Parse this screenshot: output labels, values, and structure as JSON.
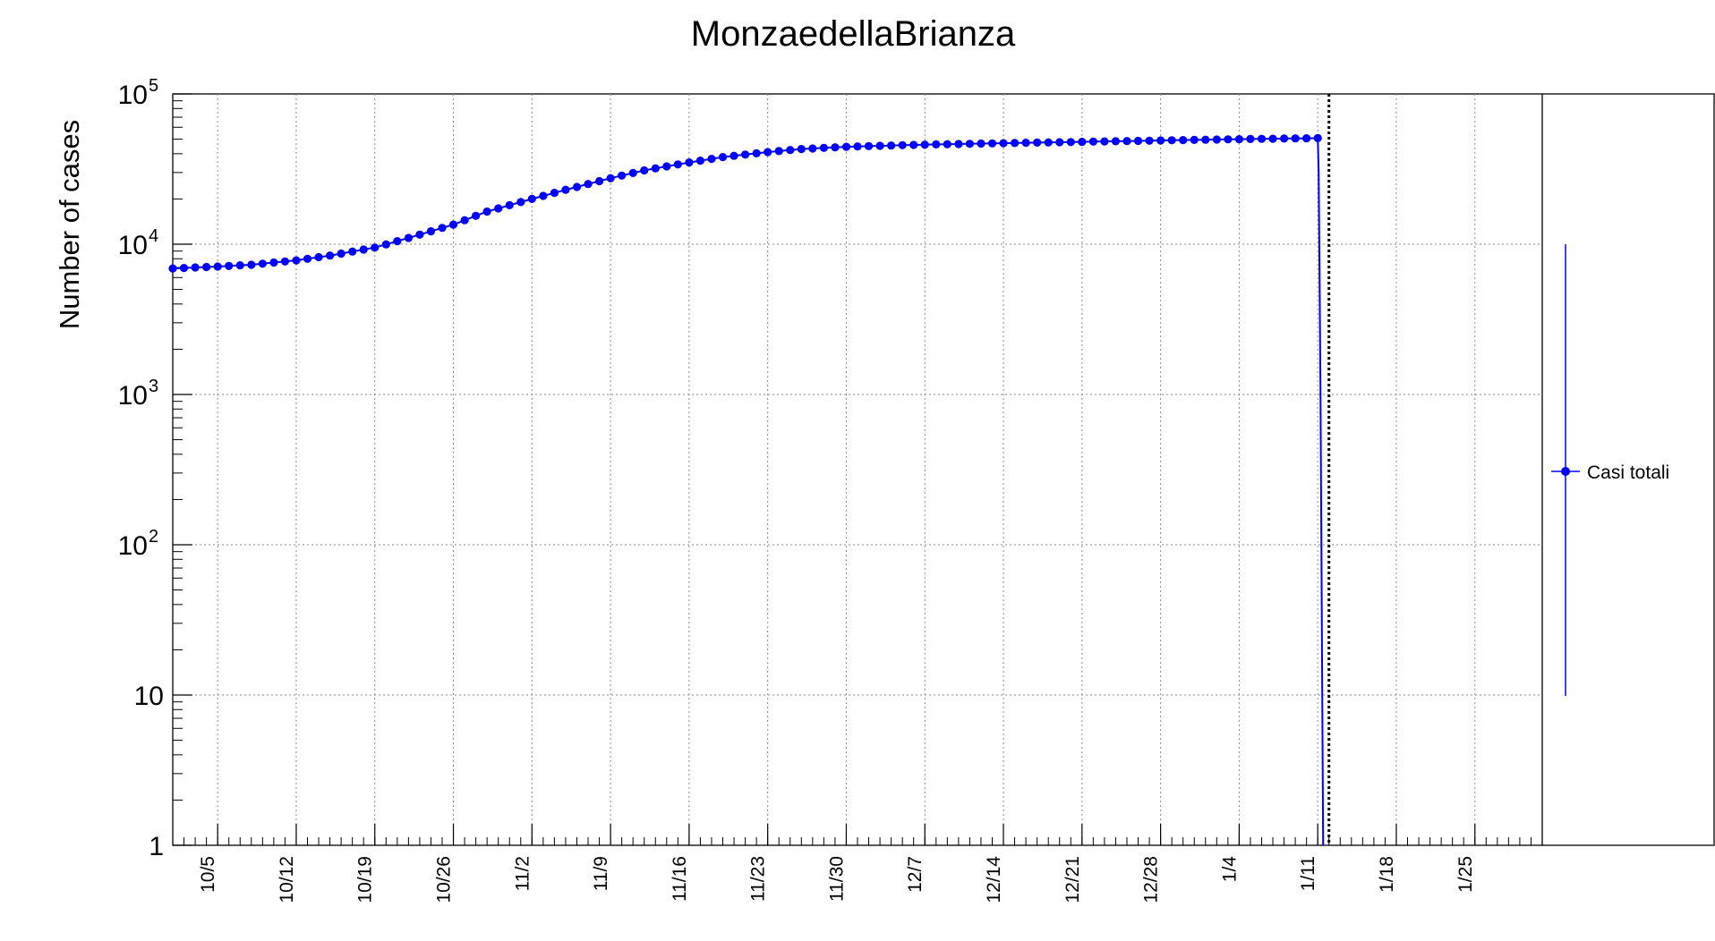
{
  "chart_data": {
    "type": "line",
    "title": "MonzaedellaBrianza",
    "xlabel": "",
    "ylabel": "Number of cases",
    "yscale": "log",
    "ylim": [
      1,
      100000
    ],
    "xlim": [
      "2020-10-01",
      "2021-01-31"
    ],
    "grid": true,
    "y_ticks": [
      {
        "value": 1,
        "label": "1"
      },
      {
        "value": 10,
        "label": "10"
      },
      {
        "value": 100,
        "label": "10",
        "exponent": "2"
      },
      {
        "value": 1000,
        "label": "10",
        "exponent": "3"
      },
      {
        "value": 10000,
        "label": "10",
        "exponent": "4"
      },
      {
        "value": 100000,
        "label": "10",
        "exponent": "5"
      }
    ],
    "x_ticks": [
      {
        "date": "2020-10-05",
        "label": "10/5"
      },
      {
        "date": "2020-10-12",
        "label": "10/12"
      },
      {
        "date": "2020-10-19",
        "label": "10/19"
      },
      {
        "date": "2020-10-26",
        "label": "10/26"
      },
      {
        "date": "2020-11-02",
        "label": "11/2"
      },
      {
        "date": "2020-11-09",
        "label": "11/9"
      },
      {
        "date": "2020-11-16",
        "label": "11/16"
      },
      {
        "date": "2020-11-23",
        "label": "11/23"
      },
      {
        "date": "2020-11-30",
        "label": "11/30"
      },
      {
        "date": "2020-12-07",
        "label": "12/7"
      },
      {
        "date": "2020-12-14",
        "label": "12/14"
      },
      {
        "date": "2020-12-21",
        "label": "12/21"
      },
      {
        "date": "2020-12-28",
        "label": "12/28"
      },
      {
        "date": "2021-01-04",
        "label": "1/4"
      },
      {
        "date": "2021-01-11",
        "label": "1/11"
      },
      {
        "date": "2021-01-18",
        "label": "1/18"
      },
      {
        "date": "2021-01-25",
        "label": "1/25"
      }
    ],
    "vertical_marker": {
      "date": "2021-01-12",
      "style": "dotted",
      "color": "#000000"
    },
    "series": [
      {
        "name": "Casi totali",
        "color": "#0000ff",
        "start_date": "2020-10-01",
        "end_date": "2021-01-11",
        "anchors": [
          [
            "2020-10-01",
            6900
          ],
          [
            "2020-10-05",
            7100
          ],
          [
            "2020-10-08",
            7300
          ],
          [
            "2020-10-12",
            7800
          ],
          [
            "2020-10-15",
            8400
          ],
          [
            "2020-10-19",
            9500
          ],
          [
            "2020-10-22",
            11000
          ],
          [
            "2020-10-26",
            13500
          ],
          [
            "2020-10-29",
            16500
          ],
          [
            "2020-11-02",
            20000
          ],
          [
            "2020-11-05",
            23000
          ],
          [
            "2020-11-09",
            27500
          ],
          [
            "2020-11-12",
            31000
          ],
          [
            "2020-11-16",
            35000
          ],
          [
            "2020-11-19",
            38000
          ],
          [
            "2020-11-23",
            41000
          ],
          [
            "2020-11-26",
            43000
          ],
          [
            "2020-11-30",
            44500
          ],
          [
            "2020-12-07",
            46000
          ],
          [
            "2020-12-14",
            47000
          ],
          [
            "2020-12-21",
            48000
          ],
          [
            "2020-12-28",
            49000
          ],
          [
            "2021-01-04",
            50000
          ],
          [
            "2021-01-11",
            50800
          ]
        ]
      }
    ],
    "legend": {
      "position": "right",
      "entries": [
        "Casi totali"
      ]
    }
  },
  "legend_icon": "line-with-dot-and-error-bar"
}
